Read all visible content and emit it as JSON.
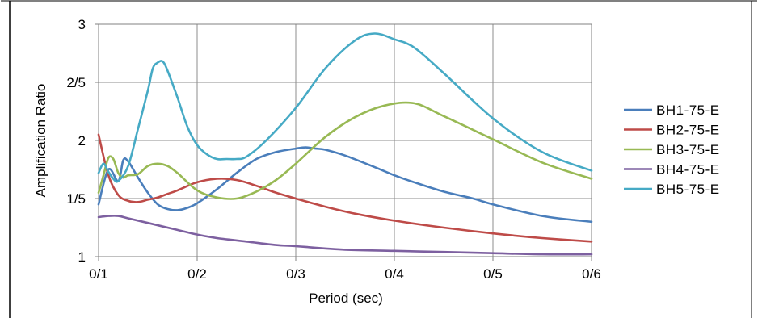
{
  "chart_data": {
    "type": "line",
    "xlabel": "Period (sec)",
    "ylabel": "Amplification Ratio",
    "xlim": [
      0.1,
      0.6
    ],
    "ylim": [
      1,
      3
    ],
    "x_ticks": [
      {
        "value": 0.1,
        "label": "0/1"
      },
      {
        "value": 0.2,
        "label": "0/2"
      },
      {
        "value": 0.3,
        "label": "0/3"
      },
      {
        "value": 0.4,
        "label": "0/4"
      },
      {
        "value": 0.5,
        "label": "0/5"
      },
      {
        "value": 0.6,
        "label": "0/6"
      }
    ],
    "y_ticks": [
      {
        "value": 1,
        "label": "1"
      },
      {
        "value": 1.5,
        "label": "1/5"
      },
      {
        "value": 2,
        "label": "2"
      },
      {
        "value": 2.5,
        "label": "2/5"
      },
      {
        "value": 3,
        "label": "3"
      }
    ],
    "grid": true,
    "legend_position": "right",
    "series": [
      {
        "name": "BH1-75-E",
        "color": "#4a7ebb",
        "x": [
          0.1,
          0.11,
          0.12,
          0.125,
          0.13,
          0.14,
          0.15,
          0.16,
          0.17,
          0.18,
          0.19,
          0.2,
          0.22,
          0.24,
          0.26,
          0.28,
          0.3,
          0.31,
          0.32,
          0.33,
          0.35,
          0.38,
          0.4,
          0.42,
          0.45,
          0.48,
          0.5,
          0.55,
          0.6
        ],
        "y": [
          1.45,
          1.75,
          1.65,
          1.83,
          1.82,
          1.68,
          1.55,
          1.45,
          1.41,
          1.4,
          1.42,
          1.46,
          1.58,
          1.72,
          1.84,
          1.9,
          1.93,
          1.94,
          1.93,
          1.92,
          1.87,
          1.77,
          1.7,
          1.64,
          1.56,
          1.5,
          1.45,
          1.35,
          1.3
        ]
      },
      {
        "name": "BH2-75-E",
        "color": "#be4b48",
        "x": [
          0.1,
          0.11,
          0.12,
          0.13,
          0.14,
          0.15,
          0.16,
          0.17,
          0.18,
          0.2,
          0.22,
          0.24,
          0.26,
          0.28,
          0.3,
          0.33,
          0.36,
          0.4,
          0.45,
          0.5,
          0.55,
          0.6
        ],
        "y": [
          2.05,
          1.7,
          1.53,
          1.48,
          1.47,
          1.49,
          1.51,
          1.54,
          1.57,
          1.64,
          1.67,
          1.66,
          1.61,
          1.55,
          1.5,
          1.43,
          1.37,
          1.31,
          1.25,
          1.2,
          1.16,
          1.13
        ]
      },
      {
        "name": "BH3-75-E",
        "color": "#98b954",
        "x": [
          0.1,
          0.105,
          0.11,
          0.115,
          0.12,
          0.125,
          0.13,
          0.14,
          0.15,
          0.16,
          0.17,
          0.18,
          0.2,
          0.22,
          0.24,
          0.26,
          0.28,
          0.3,
          0.33,
          0.36,
          0.39,
          0.42,
          0.45,
          0.5,
          0.55,
          0.6
        ],
        "y": [
          1.55,
          1.7,
          1.85,
          1.84,
          1.72,
          1.68,
          1.7,
          1.71,
          1.78,
          1.8,
          1.78,
          1.72,
          1.57,
          1.51,
          1.5,
          1.56,
          1.66,
          1.8,
          2.03,
          2.2,
          2.3,
          2.32,
          2.21,
          2.01,
          1.81,
          1.67
        ]
      },
      {
        "name": "BH4-75-E",
        "color": "#7d60a0",
        "x": [
          0.1,
          0.11,
          0.12,
          0.13,
          0.15,
          0.18,
          0.2,
          0.22,
          0.25,
          0.28,
          0.3,
          0.35,
          0.4,
          0.45,
          0.5,
          0.55,
          0.6
        ],
        "y": [
          1.34,
          1.35,
          1.35,
          1.33,
          1.29,
          1.23,
          1.19,
          1.16,
          1.13,
          1.1,
          1.09,
          1.06,
          1.05,
          1.04,
          1.03,
          1.02,
          1.02
        ]
      },
      {
        "name": "BH5-75-E",
        "color": "#46aac5",
        "x": [
          0.1,
          0.105,
          0.11,
          0.115,
          0.12,
          0.13,
          0.14,
          0.15,
          0.155,
          0.16,
          0.165,
          0.17,
          0.18,
          0.19,
          0.2,
          0.21,
          0.22,
          0.23,
          0.24,
          0.25,
          0.27,
          0.3,
          0.33,
          0.36,
          0.38,
          0.4,
          0.42,
          0.45,
          0.5,
          0.55,
          0.6
        ],
        "y": [
          1.72,
          1.8,
          1.73,
          1.67,
          1.65,
          1.78,
          2.1,
          2.43,
          2.62,
          2.67,
          2.68,
          2.6,
          2.37,
          2.12,
          1.96,
          1.88,
          1.84,
          1.84,
          1.84,
          1.86,
          2.0,
          2.28,
          2.62,
          2.86,
          2.92,
          2.87,
          2.8,
          2.58,
          2.19,
          1.9,
          1.74
        ]
      }
    ]
  }
}
